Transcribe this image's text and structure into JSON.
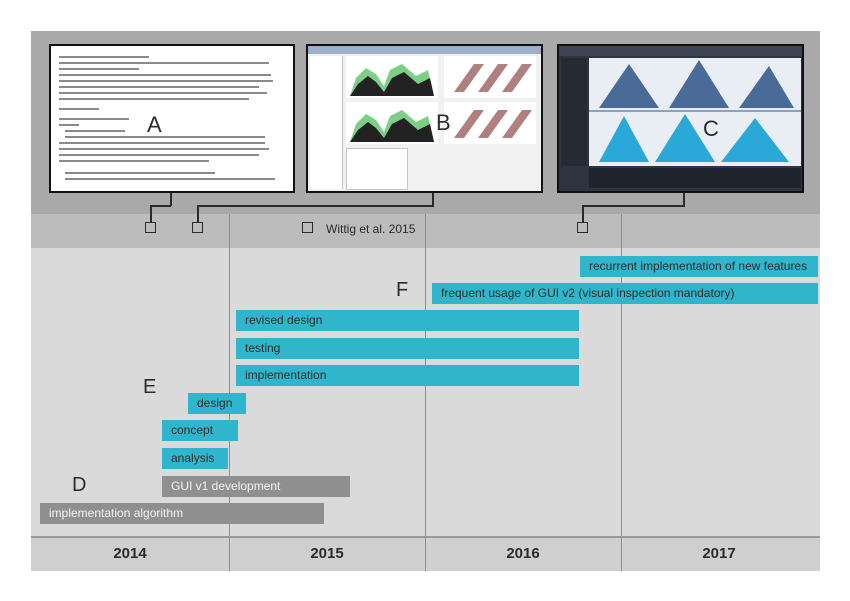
{
  "screenshots": [
    {
      "id": "A",
      "label": "A"
    },
    {
      "id": "B",
      "label": "B"
    },
    {
      "id": "C",
      "label": "C"
    }
  ],
  "citation": "Wittig et al. 2015",
  "labels": {
    "d": "D",
    "e": "E",
    "f": "F"
  },
  "tasks": [
    {
      "key": "recurrent",
      "label": "recurrent implementation of new features",
      "color": "blue"
    },
    {
      "key": "frequent",
      "label": "frequent usage of GUI v2 (visual inspection mandatory)",
      "color": "blue"
    },
    {
      "key": "revised",
      "label": "revised design",
      "color": "blue"
    },
    {
      "key": "testing",
      "label": "testing",
      "color": "blue"
    },
    {
      "key": "implementation",
      "label": "implementation",
      "color": "blue"
    },
    {
      "key": "design",
      "label": "design",
      "color": "blue"
    },
    {
      "key": "concept",
      "label": "concept",
      "color": "blue"
    },
    {
      "key": "analysis",
      "label": "analysis",
      "color": "blue"
    },
    {
      "key": "gui_v1",
      "label": "GUI v1 development",
      "color": "grey"
    },
    {
      "key": "algorithm",
      "label": "implementation algorithm",
      "color": "grey"
    }
  ],
  "years": [
    "2014",
    "2015",
    "2016",
    "2017"
  ],
  "colors": {
    "blue": "#2fb6cc",
    "grey": "#8f8f8f",
    "band": "#a9a9a9"
  }
}
